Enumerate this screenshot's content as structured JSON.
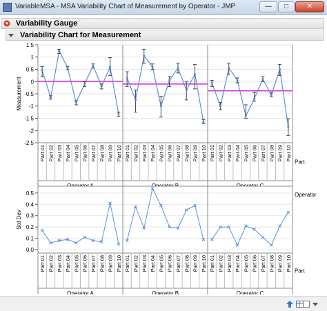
{
  "window": {
    "title": "VariableMSA - MSA Variability Chart of Measurement by Operator - JMP",
    "minimize": "—",
    "maximize": "□",
    "close": "✕"
  },
  "report": {
    "outline_top": "Variability Gauge",
    "outline_sub": "Variability Chart for Measurement"
  },
  "chart_data": [
    {
      "type": "variability",
      "ylabel": "Measurement",
      "ylim": [
        -2.5,
        1.5
      ],
      "yticks": [
        "1.5",
        "1",
        "0.5",
        "0",
        "-0.5",
        "-1",
        "-1.5",
        "-2",
        "-2.5"
      ],
      "ytick_values": [
        1.5,
        1,
        0.5,
        0,
        -0.5,
        -1,
        -1.5,
        -2,
        -2.5
      ],
      "grid": true,
      "row_label_part": "Part",
      "row_label_operator": "Operator",
      "operators": [
        "Operator A",
        "Operator B",
        "Operator C"
      ],
      "parts": [
        "Part 01",
        "Part 02",
        "Part 03",
        "Part 04",
        "Part 05",
        "Part 06",
        "Part 07",
        "Part 08",
        "Part 09",
        "Part 10"
      ],
      "series": [
        {
          "operator": "Operator A",
          "mean": [
            0.45,
            -0.65,
            1.25,
            0.55,
            -0.85,
            -0.1,
            0.65,
            -0.2,
            0.6,
            -1.32
          ],
          "min": [
            0.2,
            -0.72,
            1.15,
            0.48,
            -0.95,
            -0.2,
            0.55,
            -0.3,
            0.25,
            -1.42
          ],
          "max": [
            0.62,
            -0.58,
            1.32,
            0.62,
            -0.78,
            0.0,
            0.72,
            -0.1,
            0.98,
            -1.25
          ],
          "grand_mean": 0.01
        },
        {
          "operator": "Operator B",
          "mean": [
            0.15,
            -0.75,
            1.05,
            0.6,
            -1.0,
            0.05,
            0.55,
            -0.35,
            0.3,
            -1.65
          ],
          "min": [
            -0.2,
            -1.25,
            0.75,
            0.5,
            -1.45,
            -0.2,
            0.35,
            -0.75,
            -0.3,
            -1.72
          ],
          "max": [
            0.4,
            -0.35,
            1.32,
            0.72,
            -0.6,
            0.2,
            0.75,
            0.0,
            0.7,
            -1.55
          ],
          "grand_mean": -0.1
        },
        {
          "operator": "Operator C",
          "mean": [
            -0.05,
            -1.0,
            0.55,
            0.05,
            -1.4,
            -0.7,
            0.1,
            -0.55,
            0.5,
            -1.85
          ],
          "min": [
            -0.2,
            -1.15,
            0.3,
            -0.05,
            -1.5,
            -0.8,
            0.0,
            -0.62,
            0.25,
            -2.2
          ],
          "max": [
            0.05,
            -0.85,
            0.75,
            0.15,
            -0.95,
            -0.45,
            0.2,
            -0.45,
            0.7,
            -1.52
          ],
          "grand_mean": -0.38
        }
      ]
    },
    {
      "type": "line",
      "ylabel": "Std Dev",
      "ylim": [
        -0.03,
        0.56
      ],
      "yticks": [
        "0.5",
        "0.4",
        "0.3",
        "0.2",
        "0.1",
        "0.0"
      ],
      "ytick_values": [
        0.5,
        0.4,
        0.3,
        0.2,
        0.1,
        0.0
      ],
      "grid": true,
      "row_label_part": "Part",
      "row_label_operator": "Operator",
      "operators": [
        "Operator A",
        "Operator B",
        "Operator C"
      ],
      "parts": [
        "Part 01",
        "Part 02",
        "Part 03",
        "Part 04",
        "Part 05",
        "Part 06",
        "Part 07",
        "Part 08",
        "Part 09",
        "Part 10"
      ],
      "series": [
        {
          "operator": "Operator A",
          "values": [
            0.17,
            0.06,
            0.08,
            0.09,
            0.06,
            0.11,
            0.08,
            0.07,
            0.41,
            0.05
          ]
        },
        {
          "operator": "Operator B",
          "values": [
            0.08,
            0.38,
            0.19,
            0.54,
            0.39,
            0.2,
            0.19,
            0.35,
            0.39,
            0.09
          ]
        },
        {
          "operator": "Operator C",
          "values": [
            0.09,
            0.2,
            0.2,
            0.04,
            0.21,
            0.18,
            0.11,
            0.04,
            0.21,
            0.33
          ]
        }
      ]
    }
  ]
}
